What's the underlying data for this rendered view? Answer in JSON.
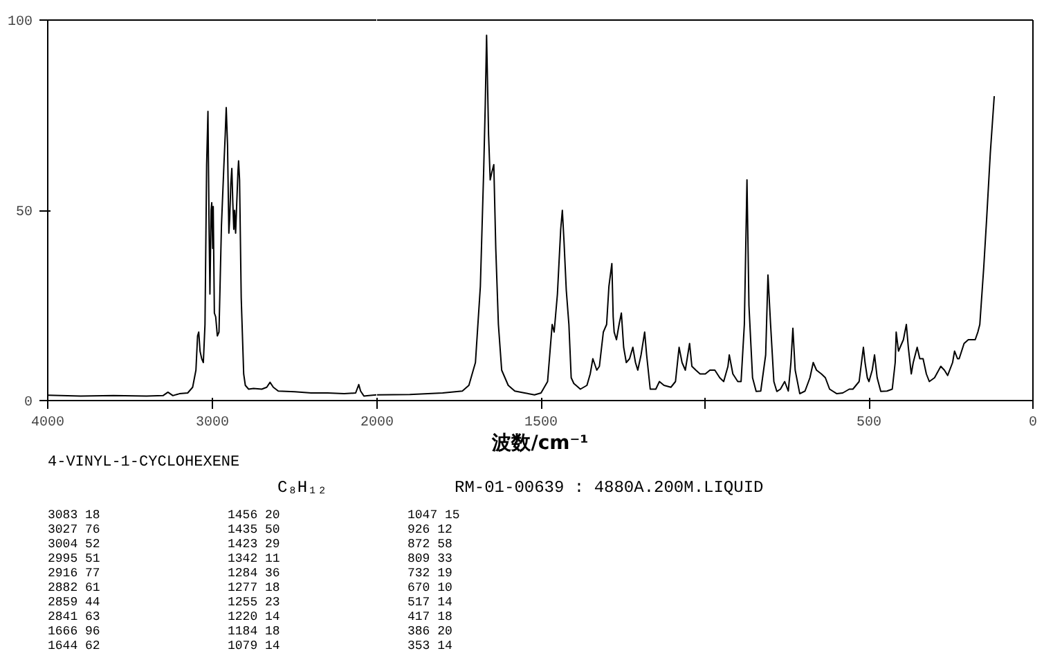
{
  "chart_data": [
    {
      "type": "line",
      "xlim": [
        4000,
        2000
      ],
      "xticks": [
        4000,
        3000
      ],
      "ylim": [
        0,
        100
      ],
      "yticks": [
        0,
        50,
        100
      ],
      "grid": false,
      "series": [
        {
          "color": "#000000",
          "x": [
            4000,
            3800,
            3600,
            3400,
            3300,
            3270,
            3240,
            3200,
            3150,
            3120,
            3100,
            3090,
            3083,
            3075,
            3065,
            3055,
            3045,
            3035,
            3027,
            3020,
            3015,
            3008,
            3004,
            2998,
            2995,
            2988,
            2980,
            2970,
            2960,
            2945,
            2930,
            2922,
            2916,
            2908,
            2900,
            2895,
            2888,
            2882,
            2876,
            2870,
            2865,
            2859,
            2852,
            2845,
            2841,
            2835,
            2825,
            2810,
            2800,
            2780,
            2750,
            2700,
            2670,
            2650,
            2630,
            2600,
            2500,
            2400,
            2300,
            2200,
            2130,
            2111,
            2100,
            2080,
            2050,
            2000
          ],
          "values": [
            1.4,
            1.2,
            1.3,
            1.2,
            1.3,
            2.2,
            1.3,
            1.8,
            2,
            3.5,
            8,
            17,
            18,
            13,
            11,
            10,
            20,
            62,
            76,
            45,
            28,
            50,
            52,
            40,
            51,
            23,
            22,
            17,
            18,
            46,
            62,
            70,
            77,
            67,
            44,
            48,
            57,
            61,
            52,
            45,
            50,
            44,
            52,
            60,
            63,
            58,
            27,
            7,
            4,
            3,
            3.2,
            3,
            3.5,
            4.8,
            3.5,
            2.5,
            2.3,
            2,
            2,
            1.8,
            2,
            4.2,
            2.5,
            1.2,
            1.3,
            1.5
          ]
        }
      ]
    },
    {
      "type": "line",
      "xlim": [
        2000,
        0
      ],
      "xticks": [
        2000,
        1500,
        {
          "value": 1000,
          "label": null
        },
        500,
        0
      ],
      "ylim": [
        0,
        100
      ],
      "yticks": [
        0,
        50,
        100
      ],
      "tick_labels": "x",
      "grid": false,
      "series": [
        {
          "color": "#000000",
          "x": [
            2000,
            1900,
            1800,
            1740,
            1720,
            1700,
            1685,
            1675,
            1670,
            1666,
            1660,
            1655,
            1650,
            1644,
            1638,
            1630,
            1620,
            1600,
            1580,
            1550,
            1520,
            1500,
            1480,
            1466,
            1460,
            1450,
            1440,
            1435,
            1430,
            1423,
            1415,
            1408,
            1400,
            1380,
            1360,
            1350,
            1342,
            1330,
            1322,
            1310,
            1300,
            1293,
            1284,
            1280,
            1277,
            1270,
            1262,
            1255,
            1248,
            1240,
            1230,
            1220,
            1212,
            1205,
            1195,
            1184,
            1178,
            1167,
            1150,
            1139,
            1125,
            1104,
            1090,
            1079,
            1070,
            1060,
            1047,
            1040,
            1028,
            1015,
            999,
            985,
            970,
            955,
            943,
            930,
            926,
            915,
            900,
            890,
            880,
            872,
            866,
            855,
            844,
            830,
            815,
            808,
            800,
            790,
            781,
            770,
            757,
            746,
            738,
            732,
            725,
            711,
            695,
            680,
            670,
            660,
            645,
            633,
            620,
            598,
            580,
            560,
            549,
            530,
            517,
            512,
            505,
            500,
            490,
            483,
            475,
            464,
            445,
            429,
            420,
            417,
            410,
            405,
            395,
            386,
            380,
            371,
            365,
            353,
            345,
            335,
            325,
            316,
            300,
            281,
            270,
            260,
            245,
            239,
            230,
            225,
            210,
            197,
            185,
            176,
            168,
            162,
            150,
            141,
            130,
            118
          ],
          "values": [
            1.5,
            1.6,
            2,
            2.5,
            4,
            10,
            30,
            60,
            78,
            96,
            70,
            58,
            60,
            62,
            40,
            20,
            8,
            4,
            2.5,
            2,
            1.5,
            2,
            5,
            20,
            18,
            28,
            45,
            50,
            42,
            29,
            20,
            6,
            4.5,
            3,
            4,
            7,
            11,
            8,
            9,
            18,
            20,
            30,
            36,
            22,
            18,
            16,
            20,
            23,
            14,
            10,
            11,
            14,
            10,
            8,
            12,
            18,
            12,
            3,
            3,
            5,
            4,
            3.5,
            5,
            14,
            10,
            8,
            15,
            9,
            8,
            7,
            7,
            8,
            8,
            6,
            5,
            9,
            12,
            7,
            5,
            5,
            20,
            58,
            25,
            6,
            2.4,
            2.5,
            12,
            33,
            20,
            5,
            2.4,
            3,
            5,
            2.5,
            10,
            19,
            8,
            1.8,
            2.5,
            6,
            10,
            8,
            7,
            6,
            3,
            1.8,
            2,
            3,
            3,
            5,
            14,
            10,
            6,
            5,
            8,
            12,
            6,
            2.4,
            2.5,
            3,
            10,
            18,
            13,
            14,
            16,
            20,
            14,
            7,
            10,
            14,
            11,
            11,
            7,
            5,
            6,
            9,
            8,
            6.6,
            10,
            13,
            11,
            11,
            15,
            16,
            16,
            16,
            18,
            20,
            35,
            48,
            65,
            80
          ]
        }
      ]
    },
    {
      "type": "other",
      "annotations": [
        "波数/cm⁻¹",
        "4-VINYL-1-CYCLOHEXENE",
        "C₈H₁₂",
        "RM-01-00639 : 4880A.200M.LIQUID",
        "3083      18",
        "3027      76",
        "3004      52",
        "2995      51",
        "2916      77",
        "2882      61",
        "2859      44",
        "2841      63",
        "1666      96",
        "1644      62",
        "1456      20",
        "1435      50",
        "1423      29",
        "1342      11",
        "1284      36",
        "1277      18",
        "1255      23",
        "1220      14",
        "1184      18",
        "1079      14",
        "1047      15",
        "926       12",
        "872       58",
        "809       33",
        "732       19",
        "670       10",
        "517       14",
        "417       18",
        "386       20",
        "353       14"
      ]
    }
  ]
}
